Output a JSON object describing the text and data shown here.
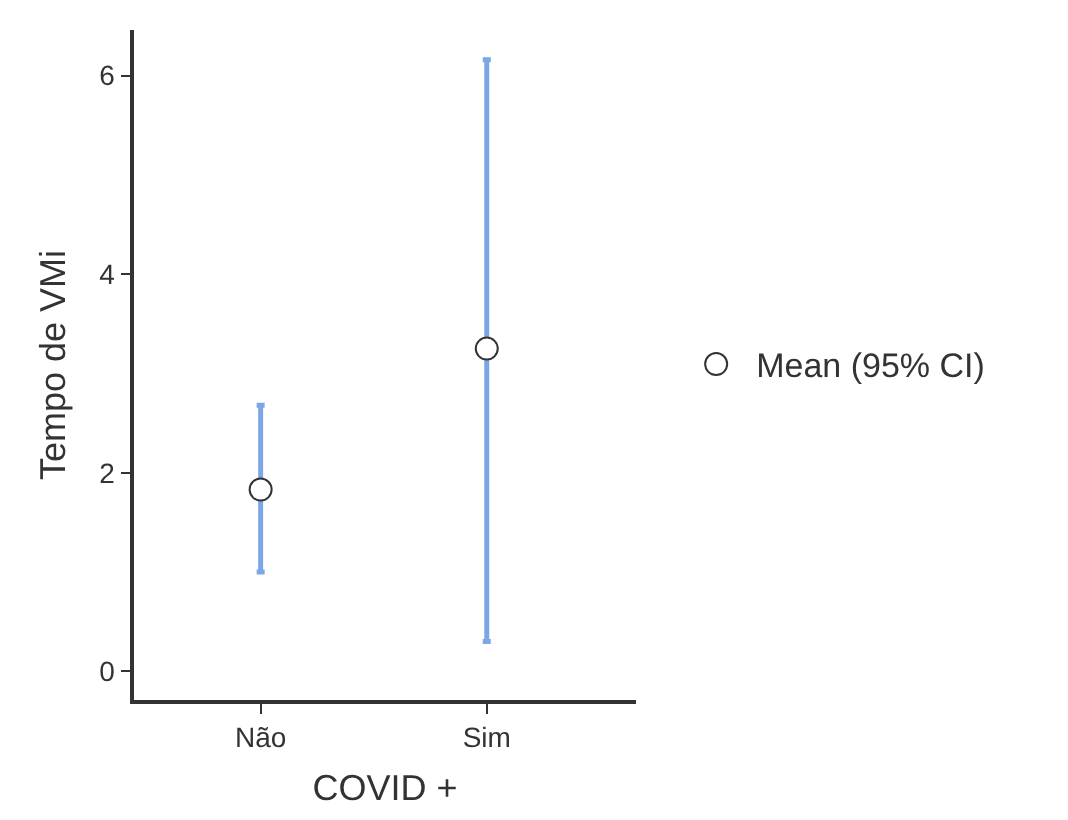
{
  "chart_data": {
    "type": "scatter",
    "xlabel": "COVID +",
    "ylabel": "Tempo de VMi",
    "categories": [
      "Não",
      "Sim"
    ],
    "series": [
      {
        "name": "Mean (95% CI)",
        "color": "#ffffff",
        "values": [
          1.83,
          3.25
        ],
        "errors": [
          [
            1.0,
            2.68
          ],
          [
            0.3,
            6.16
          ]
        ]
      }
    ],
    "ylim": [
      -0.29,
      6.46
    ],
    "yticks": [
      0,
      2,
      4,
      6
    ],
    "grid": false,
    "legend": "right",
    "marker": "circle"
  }
}
